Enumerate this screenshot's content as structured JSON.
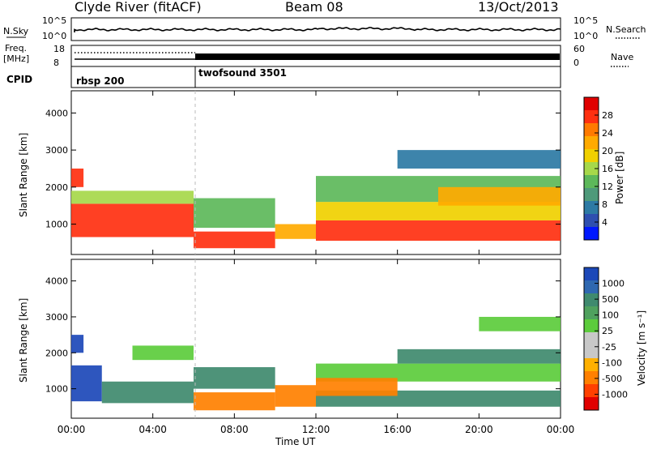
{
  "header": {
    "station": "Clyde River (fitACF)",
    "beam": "Beam 08",
    "date": "13/Oct/2013"
  },
  "panel_labels": {
    "nsky": "N.Sky",
    "nsearch": "N.Search",
    "freq_line1": "Freq.",
    "freq_line2": "[MHz]",
    "nave": "Nave",
    "cpid": "CPID"
  },
  "noise_panel": {
    "left_ticks": [
      "10^5",
      "10^0"
    ],
    "right_ticks": [
      "10^5",
      "10^0"
    ]
  },
  "freq_panel": {
    "left_ticks": [
      "18",
      "8"
    ],
    "right_ticks": [
      "60",
      "0"
    ]
  },
  "cpid_panel": {
    "segments": [
      {
        "label": "rbsp 200",
        "start_hour": 0
      },
      {
        "label": "twofsound 3501",
        "start_hour": 6
      }
    ]
  },
  "xaxis": {
    "label": "Time UT",
    "ticks": [
      "00:00",
      "04:00",
      "08:00",
      "12:00",
      "16:00",
      "20:00",
      "00:00"
    ]
  },
  "power_colorbar": {
    "label": "Power [dB]",
    "ticks": [
      "28",
      "24",
      "20",
      "16",
      "12",
      "8",
      "4"
    ],
    "colors": [
      "#e00000",
      "#ff3010",
      "#ff7a00",
      "#ffaa00",
      "#f0d000",
      "#a6d84a",
      "#5db85a",
      "#4e9a7a",
      "#2d7aa4",
      "#2e4fb0",
      "#0018ff"
    ]
  },
  "velocity_colorbar": {
    "label": "Velocity [m s⁻¹]",
    "ticks": [
      "1000",
      "500",
      "100",
      "25",
      "-25",
      "-100",
      "-500",
      "-1000"
    ],
    "colors": [
      "#1c48b8",
      "#2f68b0",
      "#3f8a6e",
      "#4fa15e",
      "#5ccc3c",
      "#c8c8c8",
      "#c8c8c8",
      "#ffb000",
      "#ff8000",
      "#ff4000",
      "#e00000"
    ]
  },
  "chart_data": [
    {
      "type": "heatmap",
      "title": "Power",
      "xlabel": "Time UT",
      "ylabel": "Slant Range [km]",
      "xlim": [
        0,
        24
      ],
      "ylim": [
        180,
        4600
      ],
      "yticks": [
        "1000",
        "2000",
        "3000",
        "4000"
      ],
      "colorbar": "Power [dB]",
      "bands": [
        {
          "t0": 0,
          "t1": 6,
          "r0": 650,
          "r1": 1550,
          "value": 28
        },
        {
          "t0": 0,
          "t1": 6,
          "r0": 1550,
          "r1": 1900,
          "value": 16
        },
        {
          "t0": 0,
          "t1": 0.6,
          "r0": 2000,
          "r1": 2500,
          "value": 28
        },
        {
          "t0": 6,
          "t1": 10,
          "r0": 350,
          "r1": 800,
          "value": 28
        },
        {
          "t0": 6,
          "t1": 10,
          "r0": 900,
          "r1": 1700,
          "value": 12
        },
        {
          "t0": 10,
          "t1": 12,
          "r0": 600,
          "r1": 1000,
          "value": 24
        },
        {
          "t0": 12,
          "t1": 24,
          "r0": 550,
          "r1": 1100,
          "value": 28
        },
        {
          "t0": 12,
          "t1": 24,
          "r0": 1100,
          "r1": 1600,
          "value": 20
        },
        {
          "t0": 12,
          "t1": 24,
          "r0": 1600,
          "r1": 2300,
          "value": 12
        },
        {
          "t0": 18,
          "t1": 24,
          "r0": 1500,
          "r1": 2000,
          "value": 24
        },
        {
          "t0": 16,
          "t1": 24,
          "r0": 2500,
          "r1": 3000,
          "value": 8
        }
      ]
    },
    {
      "type": "heatmap",
      "title": "Velocity",
      "xlabel": "Time UT",
      "ylabel": "Slant Range [km]",
      "xlim": [
        0,
        24
      ],
      "ylim": [
        180,
        4600
      ],
      "yticks": [
        "1000",
        "2000",
        "3000",
        "4000"
      ],
      "colorbar": "Velocity [m s-1]",
      "bands": [
        {
          "t0": 0,
          "t1": 1.5,
          "r0": 650,
          "r1": 1650,
          "value": 1000
        },
        {
          "t0": 1.5,
          "t1": 6,
          "r0": 600,
          "r1": 1200,
          "value": 100
        },
        {
          "t0": 0,
          "t1": 0.6,
          "r0": 2000,
          "r1": 2500,
          "value": 1000
        },
        {
          "t0": 3,
          "t1": 6,
          "r0": 1800,
          "r1": 2200,
          "value": 25
        },
        {
          "t0": 6,
          "t1": 10,
          "r0": 400,
          "r1": 900,
          "value": -100
        },
        {
          "t0": 6,
          "t1": 10,
          "r0": 1000,
          "r1": 1600,
          "value": 100
        },
        {
          "t0": 10,
          "t1": 12,
          "r0": 500,
          "r1": 1100,
          "value": -100
        },
        {
          "t0": 12,
          "t1": 24,
          "r0": 500,
          "r1": 950,
          "value": 100
        },
        {
          "t0": 12,
          "t1": 24,
          "r0": 1200,
          "r1": 1700,
          "value": 25
        },
        {
          "t0": 12,
          "t1": 16,
          "r0": 800,
          "r1": 1300,
          "value": -100
        },
        {
          "t0": 16,
          "t1": 24,
          "r0": 1700,
          "r1": 2100,
          "value": 100
        },
        {
          "t0": 20,
          "t1": 24,
          "r0": 2600,
          "r1": 3000,
          "value": 25
        }
      ]
    }
  ]
}
